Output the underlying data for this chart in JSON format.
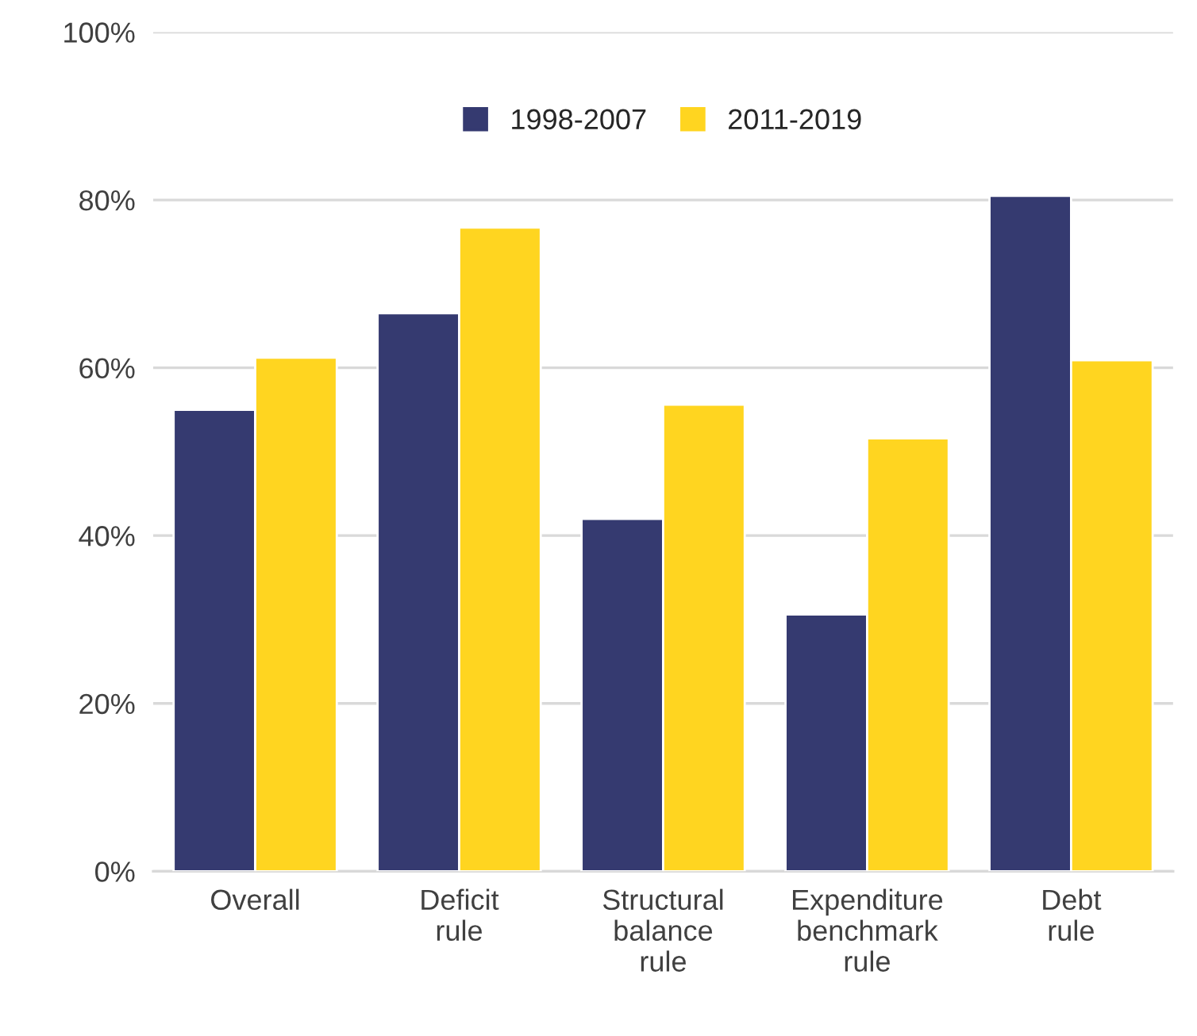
{
  "chart_data": {
    "type": "bar",
    "categories": [
      "Overall",
      "Deficit\nrule",
      "Structural\nbalance\nrule",
      "Expenditure\nbenchmark\nrule",
      "Debt\nrule"
    ],
    "series": [
      {
        "name": "1998-2007",
        "color": "#353a70",
        "values": [
          55.0,
          66.5,
          42.0,
          30.6,
          80.5
        ]
      },
      {
        "name": "2011-2019",
        "color": "#ffd520",
        "values": [
          61.2,
          76.7,
          55.6,
          51.6,
          60.9
        ]
      }
    ],
    "ylim": [
      0,
      100
    ],
    "yticks": [
      {
        "value": 0,
        "label": "0%"
      },
      {
        "value": 20,
        "label": "20%"
      },
      {
        "value": 40,
        "label": "40%"
      },
      {
        "value": 60,
        "label": "60%"
      },
      {
        "value": 80,
        "label": "80%"
      },
      {
        "value": 100,
        "label": "100%"
      }
    ],
    "grid": "y",
    "legend": "top"
  }
}
